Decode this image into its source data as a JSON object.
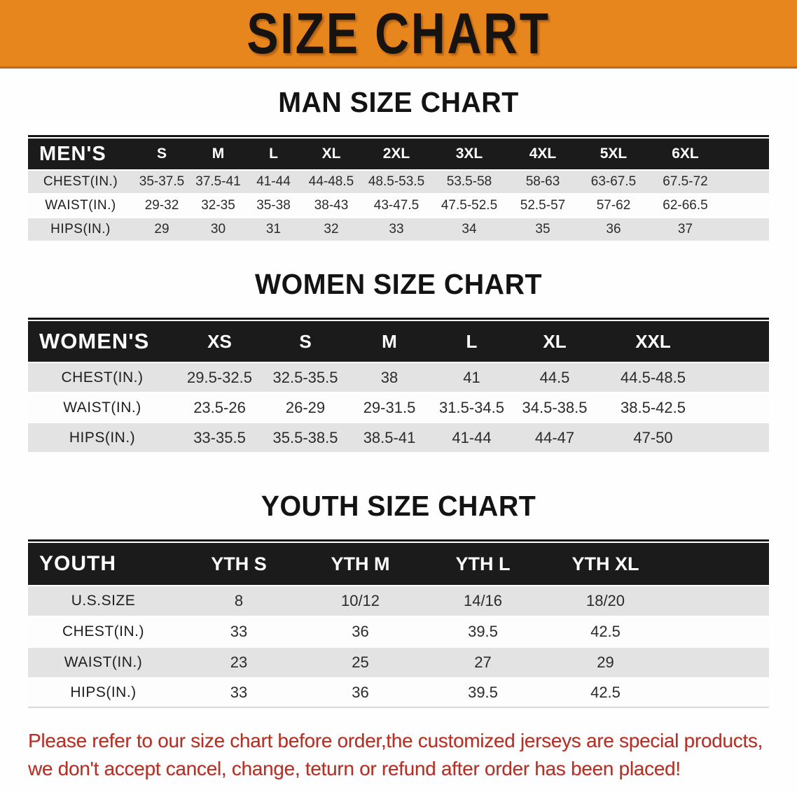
{
  "banner": {
    "title": "SIZE CHART",
    "bg_color": "#E8861E",
    "text_color": "#161310"
  },
  "sections": [
    {
      "heading": "MAN SIZE CHART",
      "table": {
        "header_label": "MEN'S",
        "columns": [
          "S",
          "M",
          "L",
          "XL",
          "2XL",
          "3XL",
          "4XL",
          "5XL",
          "6XL"
        ],
        "rows": [
          {
            "label": "CHEST(IN.)",
            "values": [
              "35-37.5",
              "37.5-41",
              "41-44",
              "44-48.5",
              "48.5-53.5",
              "53.5-58",
              "58-63",
              "63-67.5",
              "67.5-72"
            ]
          },
          {
            "label": "WAIST(IN.)",
            "values": [
              "29-32",
              "32-35",
              "35-38",
              "38-43",
              "43-47.5",
              "47.5-52.5",
              "52.5-57",
              "57-62",
              "62-66.5"
            ]
          },
          {
            "label": "HIPS(IN.)",
            "values": [
              "29",
              "30",
              "31",
              "32",
              "33",
              "34",
              "35",
              "36",
              "37"
            ]
          }
        ]
      }
    },
    {
      "heading": "WOMEN SIZE CHART",
      "table": {
        "header_label": "WOMEN'S",
        "columns": [
          "XS",
          "S",
          "M",
          "L",
          "XL",
          "XXL"
        ],
        "rows": [
          {
            "label": "CHEST(IN.)",
            "values": [
              "29.5-32.5",
              "32.5-35.5",
              "38",
              "41",
              "44.5",
              "44.5-48.5"
            ]
          },
          {
            "label": "WAIST(IN.)",
            "values": [
              "23.5-26",
              "26-29",
              "29-31.5",
              "31.5-34.5",
              "34.5-38.5",
              "38.5-42.5"
            ]
          },
          {
            "label": "HIPS(IN.)",
            "values": [
              "33-35.5",
              "35.5-38.5",
              "38.5-41",
              "41-44",
              "44-47",
              "47-50"
            ]
          }
        ]
      }
    },
    {
      "heading": "YOUTH SIZE CHART",
      "table": {
        "header_label": "YOUTH",
        "columns": [
          "YTH S",
          "YTH M",
          "YTH L",
          "YTH XL"
        ],
        "rows": [
          {
            "label": "U.S.SIZE",
            "values": [
              "8",
              "10/12",
              "14/16",
              "18/20"
            ]
          },
          {
            "label": "CHEST(IN.)",
            "values": [
              "33",
              "36",
              "39.5",
              "42.5"
            ]
          },
          {
            "label": "WAIST(IN.)",
            "values": [
              "23",
              "25",
              "27",
              "29"
            ]
          },
          {
            "label": "HIPS(IN.)",
            "values": [
              "33",
              "36",
              "39.5",
              "42.5"
            ]
          }
        ]
      }
    }
  ],
  "footer": {
    "line1": "Please refer to our size chart before order,the customized jerseys are special products,",
    "line2": "we don't accept cancel, change, teturn or refund after order has been placed!",
    "text_color": "#b43126"
  },
  "colors": {
    "header_band": "#1b1b1b",
    "row_alt": "#e3e3e3",
    "row_base": "#fdfdfd"
  }
}
